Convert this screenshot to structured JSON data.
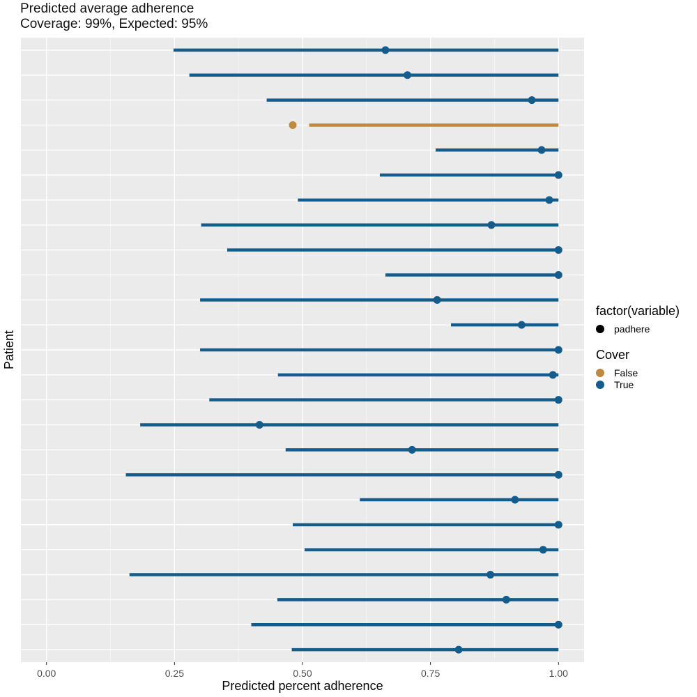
{
  "chart_data": {
    "type": "interval",
    "title": "Predicted average adherence",
    "subtitle": "Coverage: 99%, Expected: 95%",
    "xlabel": "Predicted percent adherence",
    "ylabel": "Patient",
    "xlim": [
      -0.05,
      1.05
    ],
    "x_ticks": [
      0.0,
      0.25,
      0.5,
      0.75,
      1.0
    ],
    "x_tick_labels": [
      "0.00",
      "0.25",
      "0.50",
      "0.75",
      "1.00"
    ],
    "y_tick_labels": [],
    "grid": true,
    "legend": {
      "position": "right",
      "groups": [
        {
          "title": "factor(variable)",
          "items": [
            {
              "label": "padhere",
              "color": "#000000"
            }
          ]
        },
        {
          "title": "Cover",
          "items": [
            {
              "label": "False",
              "color": "#C08A3E"
            },
            {
              "label": "True",
              "color": "#135C8C"
            }
          ]
        }
      ]
    },
    "colors": {
      "True": "#135C8C",
      "False": "#C08A3E"
    },
    "series": [
      {
        "point": 0.662,
        "lower": 0.248,
        "upper": 1.0,
        "cover": "True"
      },
      {
        "point": 0.705,
        "lower": 0.279,
        "upper": 1.0,
        "cover": "True"
      },
      {
        "point": 0.948,
        "lower": 0.43,
        "upper": 1.0,
        "cover": "True"
      },
      {
        "point": 0.481,
        "lower": 0.513,
        "upper": 1.0,
        "cover": "False"
      },
      {
        "point": 0.967,
        "lower": 0.76,
        "upper": 1.0,
        "cover": "True"
      },
      {
        "point": 1.0,
        "lower": 0.651,
        "upper": 1.0,
        "cover": "True"
      },
      {
        "point": 0.982,
        "lower": 0.491,
        "upper": 1.0,
        "cover": "True"
      },
      {
        "point": 0.869,
        "lower": 0.302,
        "upper": 1.0,
        "cover": "True"
      },
      {
        "point": 1.0,
        "lower": 0.353,
        "upper": 1.0,
        "cover": "True"
      },
      {
        "point": 1.0,
        "lower": 0.662,
        "upper": 1.0,
        "cover": "True"
      },
      {
        "point": 0.763,
        "lower": 0.3,
        "upper": 1.0,
        "cover": "True"
      },
      {
        "point": 0.928,
        "lower": 0.79,
        "upper": 1.0,
        "cover": "True"
      },
      {
        "point": 1.0,
        "lower": 0.3,
        "upper": 1.0,
        "cover": "True"
      },
      {
        "point": 0.989,
        "lower": 0.452,
        "upper": 1.0,
        "cover": "True"
      },
      {
        "point": 1.0,
        "lower": 0.318,
        "upper": 1.0,
        "cover": "True"
      },
      {
        "point": 0.416,
        "lower": 0.183,
        "upper": 1.0,
        "cover": "True"
      },
      {
        "point": 0.714,
        "lower": 0.467,
        "upper": 1.0,
        "cover": "True"
      },
      {
        "point": 1.0,
        "lower": 0.155,
        "upper": 1.0,
        "cover": "True"
      },
      {
        "point": 0.915,
        "lower": 0.612,
        "upper": 1.0,
        "cover": "True"
      },
      {
        "point": 1.0,
        "lower": 0.481,
        "upper": 1.0,
        "cover": "True"
      },
      {
        "point": 0.97,
        "lower": 0.504,
        "upper": 1.0,
        "cover": "True"
      },
      {
        "point": 0.867,
        "lower": 0.162,
        "upper": 1.0,
        "cover": "True"
      },
      {
        "point": 0.898,
        "lower": 0.451,
        "upper": 1.0,
        "cover": "True"
      },
      {
        "point": 1.0,
        "lower": 0.4,
        "upper": 1.0,
        "cover": "True"
      },
      {
        "point": 0.805,
        "lower": 0.479,
        "upper": 1.0,
        "cover": "True"
      }
    ]
  }
}
